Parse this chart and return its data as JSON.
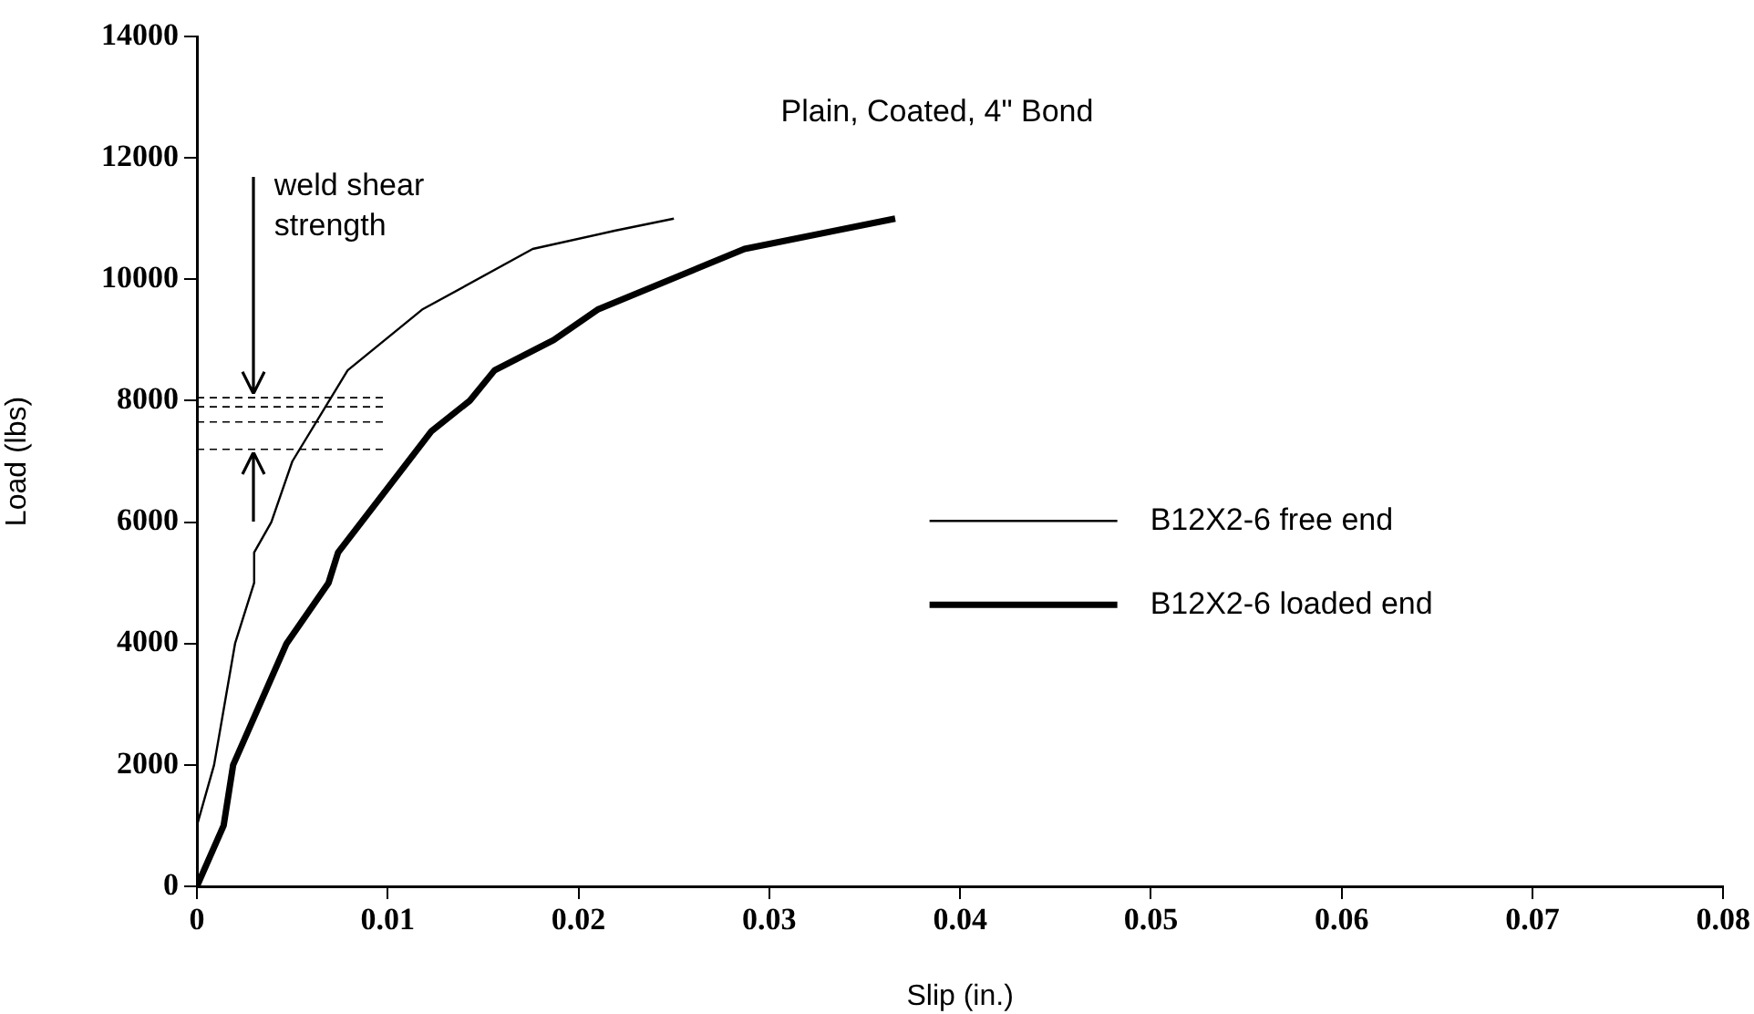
{
  "chart_data": {
    "type": "line",
    "title": "Plain, Coated, 4\" Bond",
    "xlabel": "Slip (in.)",
    "ylabel": "Load (lbs)",
    "xlim": [
      0,
      0.08
    ],
    "xticks": [
      0,
      0.01,
      0.02,
      0.03,
      0.04,
      0.05,
      0.06,
      0.07,
      0.08
    ],
    "ylim": [
      0,
      14000
    ],
    "yticks": [
      0,
      2000,
      4000,
      6000,
      8000,
      10000,
      12000,
      14000
    ],
    "grid": false,
    "legend": "right",
    "marker": "none",
    "annotations": [
      {
        "text": "weld shear strength",
        "x": 0.003,
        "y": 8050
      }
    ],
    "series": [
      {
        "name": "B12X2-6 free end",
        "color": "#000000",
        "line_style": "solid",
        "x": [
          0,
          0.0009,
          0.002,
          0.003,
          0.003,
          0.0039,
          0.005,
          0.0079,
          0.0118,
          0.0176,
          0.0219,
          0.025
        ],
        "values": [
          1000,
          2000,
          4000,
          5000,
          5500,
          6000,
          7000,
          8500,
          9500,
          10500,
          10800,
          11000
        ]
      },
      {
        "name": "B12X2-6 loaded end",
        "color": "#000000",
        "line_style": "solid",
        "x": [
          0,
          0.0014,
          0.0019,
          0.0047,
          0.0069,
          0.0074,
          0.0123,
          0.0143,
          0.0156,
          0.0187,
          0.021,
          0.0287,
          0.0366
        ],
        "values": [
          0,
          1000,
          2000,
          4000,
          5000,
          5500,
          7500,
          8000,
          8500,
          9000,
          9500,
          10500,
          11000
        ]
      },
      {
        "color": "#000000",
        "line_style": "dashed",
        "x": [
          0,
          0.01
        ],
        "values": [
          8050,
          8050
        ]
      },
      {
        "color": "#000000",
        "line_style": "dashed",
        "x": [
          0,
          0.01
        ],
        "values": [
          7900,
          7900
        ]
      },
      {
        "color": "#000000",
        "line_style": "dashed",
        "x": [
          0,
          0.01
        ],
        "values": [
          7650,
          7650
        ]
      },
      {
        "color": "#000000",
        "line_style": "dashed",
        "x": [
          0,
          0.01
        ],
        "values": [
          7200,
          7200
        ]
      }
    ]
  }
}
